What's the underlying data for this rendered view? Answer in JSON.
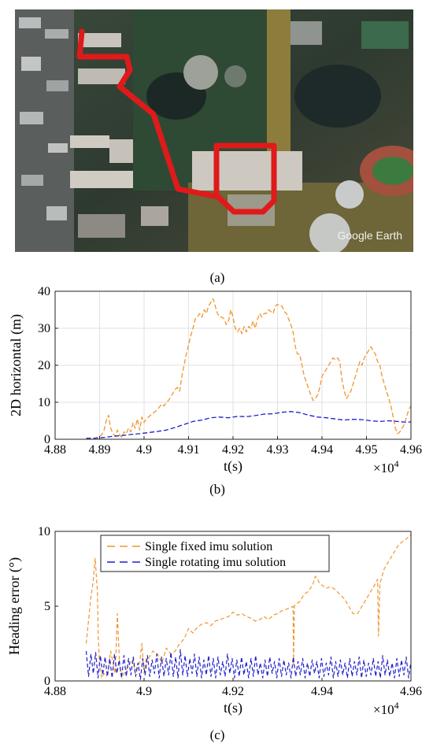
{
  "map": {
    "watermark": "Google Earth",
    "route_color": "#e01a1a"
  },
  "captions": {
    "a": "(a)",
    "b": "(b)",
    "c": "(c)"
  },
  "chart_data": [
    {
      "type": "line",
      "xlabel": "t(s)",
      "ylabel": "2D horizontal (m)",
      "x_multiplier": "×10^4",
      "xlim": [
        4.88,
        4.96
      ],
      "ylim": [
        0,
        40
      ],
      "xticks": [
        4.88,
        4.89,
        4.9,
        4.91,
        4.92,
        4.93,
        4.94,
        4.95,
        4.96
      ],
      "xticklabels": [
        "4.88",
        "4.89",
        "4.9",
        "4.91",
        "4.92",
        "4.93",
        "4.94",
        "4.95",
        "4.96"
      ],
      "yticks": [
        0,
        10,
        20,
        30,
        40
      ],
      "yticklabels": [
        "0",
        "10",
        "20",
        "30",
        "40"
      ],
      "grid": true,
      "legend": null,
      "series": [
        {
          "color": "#f0962e",
          "dash": "dashed",
          "x": [
            4.887,
            4.888,
            4.889,
            4.8895,
            4.8905,
            4.891,
            4.8915,
            4.892,
            4.8925,
            4.893,
            4.8935,
            4.894,
            4.8945,
            4.895,
            4.8955,
            4.896,
            4.8965,
            4.897,
            4.8975,
            4.898,
            4.8985,
            4.899,
            4.8995,
            4.9,
            4.9005,
            4.901,
            4.9015,
            4.902,
            4.9025,
            4.903,
            4.9035,
            4.904,
            4.9045,
            4.905,
            4.9055,
            4.906,
            4.9065,
            4.907,
            4.9075,
            4.908,
            4.9085,
            4.909,
            4.9095,
            4.91,
            4.9105,
            4.911,
            4.9115,
            4.912,
            4.9125,
            4.913,
            4.9135,
            4.914,
            4.9145,
            4.915,
            4.9155,
            4.916,
            4.9165,
            4.917,
            4.9175,
            4.918,
            4.9185,
            4.919,
            4.9195,
            4.92,
            4.9205,
            4.921,
            4.9215,
            4.922,
            4.9225,
            4.923,
            4.9235,
            4.924,
            4.9245,
            4.925,
            4.9255,
            4.926,
            4.9265,
            4.927,
            4.9275,
            4.928,
            4.9285,
            4.929,
            4.9295,
            4.93,
            4.9305,
            4.931,
            4.9315,
            4.932,
            4.9325,
            4.933,
            4.9335,
            4.934,
            4.9345,
            4.935,
            4.9355,
            4.936,
            4.9365,
            4.937,
            4.9375,
            4.938,
            4.9385,
            4.939,
            4.9395,
            4.94,
            4.9405,
            4.941,
            4.9415,
            4.942,
            4.9425,
            4.943,
            4.9435,
            4.944,
            4.9445,
            4.945,
            4.9455,
            4.946,
            4.9465,
            4.947,
            4.9475,
            4.948,
            4.9485,
            4.949,
            4.9495,
            4.95,
            4.9505,
            4.951,
            4.9515,
            4.952,
            4.9525,
            4.953,
            4.9535,
            4.954,
            4.9545,
            4.955,
            4.9555,
            4.956,
            4.9565,
            4.957,
            4.9575,
            4.958,
            4.9585,
            4.959,
            4.9595,
            4.96
          ],
          "y": [
            0,
            0,
            0.3,
            0.5,
            1.2,
            2.5,
            5,
            6.5,
            3,
            1.5,
            0.8,
            2.5,
            1.2,
            0.5,
            2,
            1.5,
            3,
            2,
            4.5,
            3,
            5.5,
            2.5,
            6,
            4.5,
            5.5,
            6,
            6.5,
            7,
            7.5,
            8,
            8.8,
            9.5,
            9,
            10,
            10.5,
            11.5,
            12.5,
            13.5,
            14,
            13,
            17,
            20,
            23,
            25.5,
            28,
            30,
            32.5,
            33,
            34,
            33,
            35,
            34,
            36,
            37,
            38,
            36,
            34,
            33,
            33,
            32.5,
            31,
            32,
            35,
            33,
            30,
            29,
            30,
            28.5,
            30.5,
            29,
            30.5,
            30,
            32,
            30,
            32.5,
            34,
            33,
            34,
            34,
            35,
            34.5,
            34,
            36,
            36.5,
            36,
            36,
            34.5,
            34,
            32.5,
            31,
            29,
            25,
            23,
            23,
            20,
            17,
            15.5,
            13.5,
            12,
            10.5,
            11,
            12,
            14,
            17,
            18,
            19,
            20,
            21,
            22,
            21.5,
            22,
            21,
            16,
            13,
            11,
            12,
            13,
            15,
            17,
            19,
            21,
            20,
            22,
            23,
            24,
            25,
            24,
            23,
            21,
            20,
            17,
            15,
            13,
            11,
            9,
            6,
            3,
            1.5,
            2,
            3,
            4,
            6,
            8,
            9
          ]
        },
        {
          "color": "#1f1fcc",
          "dash": "dashed",
          "x": [
            4.887,
            4.889,
            4.891,
            4.893,
            4.895,
            4.897,
            4.899,
            4.901,
            4.903,
            4.905,
            4.907,
            4.909,
            4.911,
            4.913,
            4.915,
            4.917,
            4.919,
            4.921,
            4.923,
            4.925,
            4.927,
            4.929,
            4.931,
            4.933,
            4.935,
            4.937,
            4.939,
            4.941,
            4.943,
            4.945,
            4.947,
            4.949,
            4.951,
            4.953,
            4.955,
            4.957,
            4.959,
            4.96
          ],
          "y": [
            0.3,
            0.3,
            0.5,
            0.8,
            1,
            1.3,
            1.5,
            1.8,
            2.1,
            2.5,
            3.2,
            4,
            4.8,
            5.2,
            5.8,
            6,
            5.8,
            6.2,
            6.1,
            6.4,
            6.8,
            6.9,
            7.3,
            7.5,
            7.2,
            6.5,
            6,
            5.8,
            5.5,
            5.2,
            5.4,
            5.3,
            5,
            4.8,
            5,
            4.8,
            4.6,
            4.7
          ]
        }
      ]
    },
    {
      "type": "line",
      "xlabel": "t(s)",
      "ylabel": "Heading error (°)",
      "x_multiplier": "×10^4",
      "xlim": [
        4.88,
        4.96
      ],
      "ylim": [
        0,
        10
      ],
      "xticks": [
        4.88,
        4.9,
        4.92,
        4.94,
        4.96
      ],
      "xticklabels": [
        "4.88",
        "4.9",
        "4.92",
        "4.94",
        "4.96"
      ],
      "yticks": [
        0,
        5,
        10
      ],
      "yticklabels": [
        "0",
        "5",
        "10"
      ],
      "grid": false,
      "legend": "top-center",
      "series": [
        {
          "name": "Single fixed imu solution",
          "color": "#f0962e",
          "dash": "dashed",
          "x": [
            4.887,
            4.8875,
            4.888,
            4.8885,
            4.889,
            4.8895,
            4.8897,
            4.89,
            4.8905,
            4.891,
            4.8915,
            4.892,
            4.8925,
            4.8935,
            4.894,
            4.8945,
            4.895,
            4.8955,
            4.8965,
            4.8975,
            4.898,
            4.8985,
            4.899,
            4.8995,
            4.9,
            4.9005,
            4.901,
            4.902,
            4.903,
            4.904,
            4.905,
            4.906,
            4.907,
            4.908,
            4.909,
            4.91,
            4.911,
            4.912,
            4.913,
            4.914,
            4.915,
            4.916,
            4.917,
            4.918,
            4.919,
            4.92,
            4.921,
            4.922,
            4.923,
            4.924,
            4.925,
            4.926,
            4.927,
            4.928,
            4.929,
            4.93,
            4.931,
            4.932,
            4.933,
            4.9335,
            4.9336,
            4.9338,
            4.934,
            4.935,
            4.936,
            4.937,
            4.938,
            4.9385,
            4.939,
            4.9395,
            4.94,
            4.941,
            4.942,
            4.943,
            4.944,
            4.945,
            4.946,
            4.947,
            4.948,
            4.949,
            4.95,
            4.951,
            4.952,
            4.9525,
            4.9527,
            4.953,
            4.954,
            4.955,
            4.956,
            4.957,
            4.958,
            4.959,
            4.96
          ],
          "y": [
            2.5,
            4,
            5.5,
            6.5,
            8.2,
            6,
            3,
            1,
            0.2,
            0.5,
            0.3,
            0.8,
            2,
            0.5,
            4.5,
            1,
            0.2,
            0.5,
            1,
            1.5,
            0.5,
            1,
            1.2,
            2.5,
            0.5,
            1.5,
            1.5,
            2,
            1.8,
            1.2,
            2.2,
            1.8,
            2,
            2.5,
            2.8,
            3.5,
            3.2,
            3.6,
            3.8,
            3.9,
            3.7,
            4,
            4.1,
            4.2,
            4.3,
            4.6,
            4.4,
            4.5,
            4.3,
            4.2,
            4,
            4.1,
            4.3,
            4.1,
            4.4,
            4.5,
            4.7,
            4.8,
            4.9,
            5,
            1,
            5,
            5.1,
            5.3,
            5.8,
            6,
            6.5,
            7,
            6.8,
            6.5,
            6.4,
            6.2,
            6.3,
            6.1,
            5.8,
            5.5,
            5,
            4.5,
            4.5,
            5,
            5.5,
            6,
            6.5,
            6.8,
            3,
            6.5,
            7.5,
            8,
            8.5,
            9,
            9.3,
            9.5,
            9.8
          ]
        },
        {
          "name": "Single rotating imu solution",
          "color": "#1f1fcc",
          "dash": "dashed",
          "x_start": 4.887,
          "x_end": 4.96,
          "y": [
            2.0,
            0.3,
            1.8,
            0.5,
            1.9,
            0.2,
            1.7,
            0.4,
            1.6,
            0.3,
            1.5,
            0.2,
            1.8,
            0.5,
            1.4,
            0.2,
            1.7,
            0.3,
            1.5,
            0.4,
            1.6,
            0.3,
            1.2,
            0.1,
            1.5,
            0.4,
            1.7,
            0.3,
            1.4,
            0.5,
            1.8,
            0.2,
            1.6,
            0.3,
            1.5,
            0.4,
            1.9,
            0.3,
            1.6,
            0.2,
            2.1,
            0.4,
            1.7,
            0.3,
            1.5,
            0.5,
            1.8,
            0.3,
            1.6,
            0.2,
            1.4,
            0.4,
            1.7,
            0.3,
            1.5,
            0.2,
            1.6,
            0.4,
            1.3,
            0.3,
            1.8,
            0.5,
            1.5,
            0.2,
            1.4,
            0.3,
            1.6,
            0.4,
            1.3,
            0.2,
            1.5,
            0.3,
            1.7,
            0.4,
            1.2,
            0.2,
            1.4,
            0.3,
            1.6,
            0.5,
            1.3,
            0.2,
            1.5,
            0.3,
            1.4,
            0.4,
            1.2,
            0.2,
            1.6,
            0.3,
            1.3,
            0.4,
            1.5,
            0.2,
            1.2,
            0.3,
            1.4,
            0.5,
            1.3,
            0.2,
            1.5,
            0.3,
            1.2,
            0.4,
            1.6,
            0.2,
            1.3,
            0.3,
            1.4,
            0.4,
            1.2,
            0.2,
            1.5,
            0.3,
            1.3,
            0.4,
            1.6,
            0.2,
            1.4,
            0.3,
            1.2,
            0.4,
            1.5,
            0.3,
            1.3,
            0.2,
            1.7,
            0.4,
            1.4,
            0.3,
            1.2,
            0.2,
            1.5,
            0.3,
            1.4,
            0.4,
            1.6,
            0.2,
            1.3
          ]
        }
      ]
    }
  ]
}
